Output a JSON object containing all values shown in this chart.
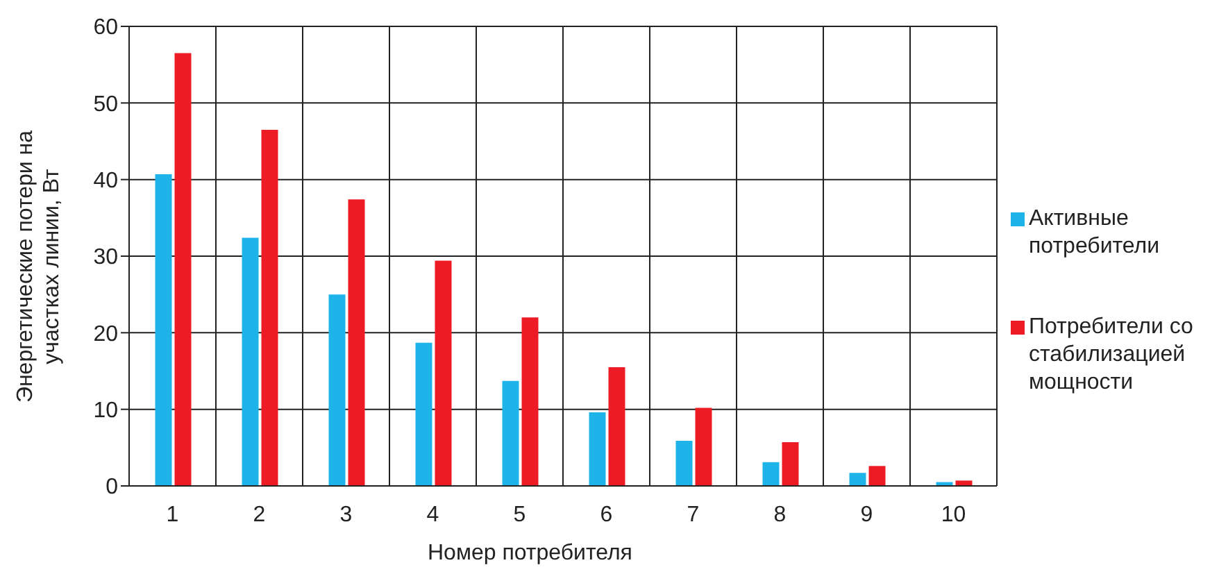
{
  "chart_data": {
    "type": "bar",
    "xlabel": "Номер потребителя",
    "ylabel": "Энергетические потери на участках линии, Вт",
    "categories": [
      "1",
      "2",
      "3",
      "4",
      "5",
      "6",
      "7",
      "8",
      "9",
      "10"
    ],
    "series": [
      {
        "name": "Активные потребители",
        "color": "#1eb4ea",
        "values": [
          40.7,
          32.4,
          25,
          18.7,
          13.7,
          9.6,
          5.9,
          3.1,
          1.7,
          0.5
        ]
      },
      {
        "name": "Потребители со стабилизацией мощности",
        "color": "#ed1c24",
        "values": [
          56.5,
          46.5,
          37.4,
          29.4,
          22,
          15.5,
          10.2,
          5.7,
          2.6,
          0.7
        ]
      }
    ],
    "ylim": [
      0,
      60
    ],
    "yticks": [
      0,
      10,
      20,
      30,
      40,
      50,
      60
    ],
    "grid": true,
    "legend": "right"
  }
}
